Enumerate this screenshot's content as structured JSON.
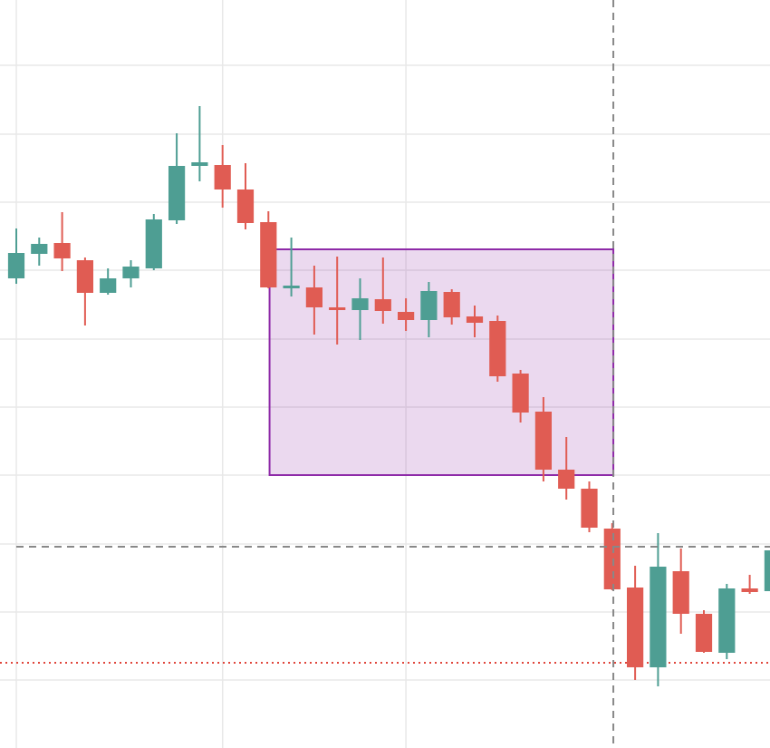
{
  "chart_data": {
    "type": "candlestick",
    "x": [
      0,
      1,
      2,
      3,
      4,
      5,
      6,
      7,
      8,
      9,
      10,
      11,
      12,
      13,
      14,
      15,
      16,
      17,
      18,
      19,
      20,
      21,
      22,
      23,
      24,
      25,
      26,
      27,
      28,
      29,
      30,
      31,
      32,
      33
    ],
    "open": [
      518,
      545,
      557,
      538,
      502,
      518,
      529,
      582,
      642,
      643,
      616,
      580,
      507,
      508,
      486,
      483,
      495,
      481,
      472,
      503,
      476,
      471,
      413,
      371,
      307,
      286,
      242,
      177,
      89,
      195,
      148,
      105,
      176,
      173
    ],
    "high": [
      573,
      563,
      591,
      541,
      529,
      538,
      589,
      678,
      708,
      665,
      645,
      592,
      563,
      532,
      542,
      518,
      541,
      496,
      514,
      506,
      488,
      477,
      417,
      387,
      343,
      294,
      248,
      201,
      237,
      220,
      152,
      181,
      191,
      225
    ],
    "low": [
      512,
      532,
      526,
      466,
      500,
      508,
      527,
      578,
      625,
      596,
      572,
      507,
      498,
      456,
      445,
      450,
      468,
      460,
      453,
      467,
      453,
      404,
      359,
      294,
      274,
      238,
      174,
      75,
      68,
      126,
      105,
      98,
      170,
      170
    ],
    "close": [
      546,
      556,
      540,
      502,
      518,
      531,
      583,
      642,
      646,
      616,
      579,
      508,
      510,
      486,
      483,
      496,
      482,
      472,
      504,
      475,
      469,
      410,
      370,
      307,
      286,
      243,
      175,
      89,
      200,
      148,
      106,
      176,
      172,
      218
    ],
    "up_color": "#4e9e93",
    "down_color": "#e05c53",
    "xlim": [
      -0.711,
      32.885
    ],
    "ylim": [
      0,
      825
    ],
    "xticks": [
      0,
      9,
      17
    ],
    "yticks": [
      75,
      150,
      225,
      301,
      376,
      451,
      527,
      602,
      677,
      753
    ],
    "grid": true,
    "crosshair": {
      "x": 26.05,
      "y": 222
    },
    "hline": {
      "y": 94,
      "color": "#e0453b"
    },
    "rectangle": {
      "x": [
        11.05,
        26.05
      ],
      "y": [
        301,
        550
      ],
      "color": "#8e2aa8"
    }
  }
}
